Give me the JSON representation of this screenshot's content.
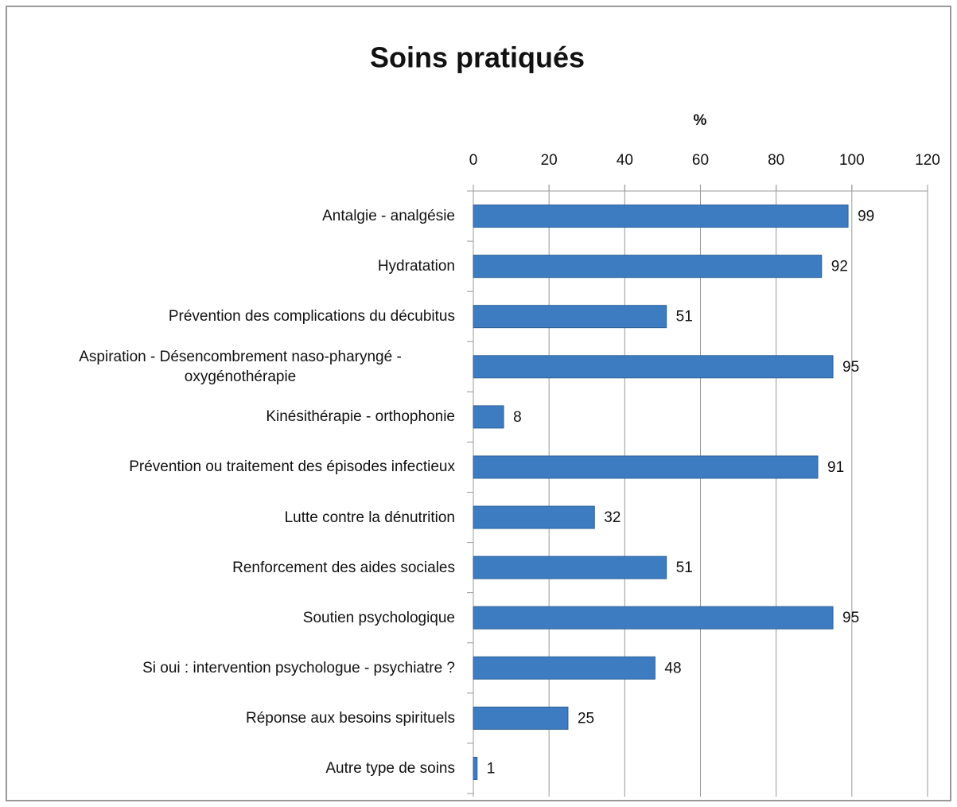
{
  "chart_data": {
    "type": "bar",
    "orientation": "horizontal",
    "title": "Soins pratiqués",
    "x_label": "%",
    "categories": [
      "Antalgie - analgésie",
      "Hydratation",
      "Prévention des complications du décubitus",
      "Aspiration - Désencombrement naso-pharyngé - oxygénothérapie",
      "Kinésithérapie - orthophonie",
      "Prévention ou traitement des épisodes infectieux",
      "Lutte contre la dénutrition",
      "Renforcement des aides sociales",
      "Soutien psychologique",
      "Si oui : intervention psychologue - psychiatre ?",
      "Réponse aux besoins spirituels",
      "Autre type de soins"
    ],
    "values": [
      99,
      92,
      51,
      95,
      8,
      91,
      32,
      51,
      95,
      48,
      25,
      1
    ],
    "color": "#3e7cc1",
    "xlim": [
      0,
      120
    ],
    "xticks": [
      0,
      20,
      40,
      60,
      80,
      100,
      120
    ],
    "grid": true
  }
}
